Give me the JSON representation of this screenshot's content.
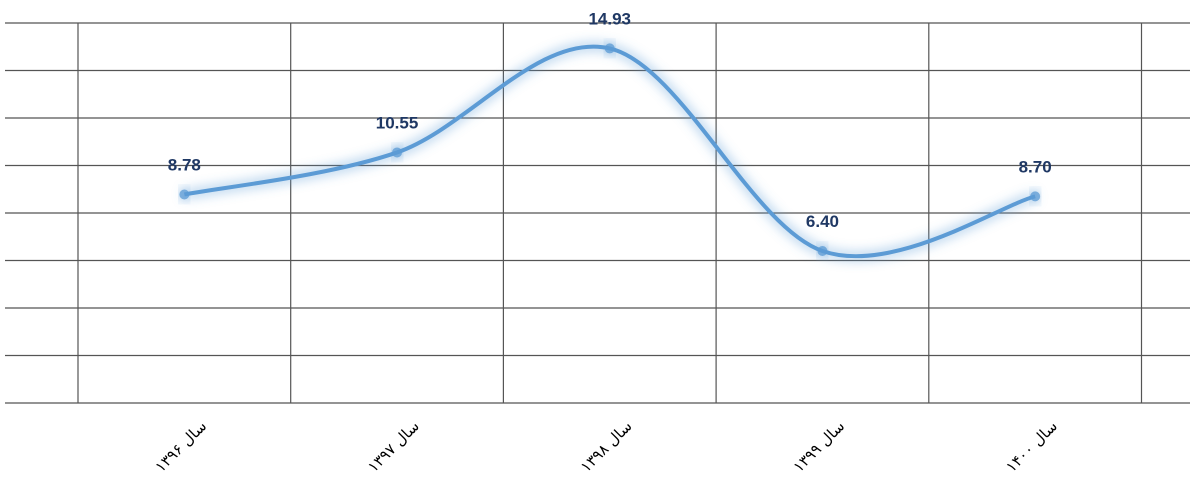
{
  "chart_data": {
    "type": "line",
    "categories": [
      "سال ۱۳۹۶",
      "سال ۱۳۹۷",
      "سال ۱۳۹۸",
      "سال ۱۳۹۹",
      "سال ۱۴۰۰"
    ],
    "series": [
      {
        "color": "#5b9bd5",
        "values": [
          8.78,
          10.55,
          14.93,
          6.4,
          8.7
        ],
        "value_labels": [
          "8.78",
          "10.55",
          "14.93",
          "6.40",
          "8.70"
        ]
      }
    ],
    "ylim": [
      0,
      16
    ],
    "yticks": [
      0,
      2,
      4,
      6,
      8,
      10,
      12,
      14,
      16
    ],
    "grid": true
  }
}
